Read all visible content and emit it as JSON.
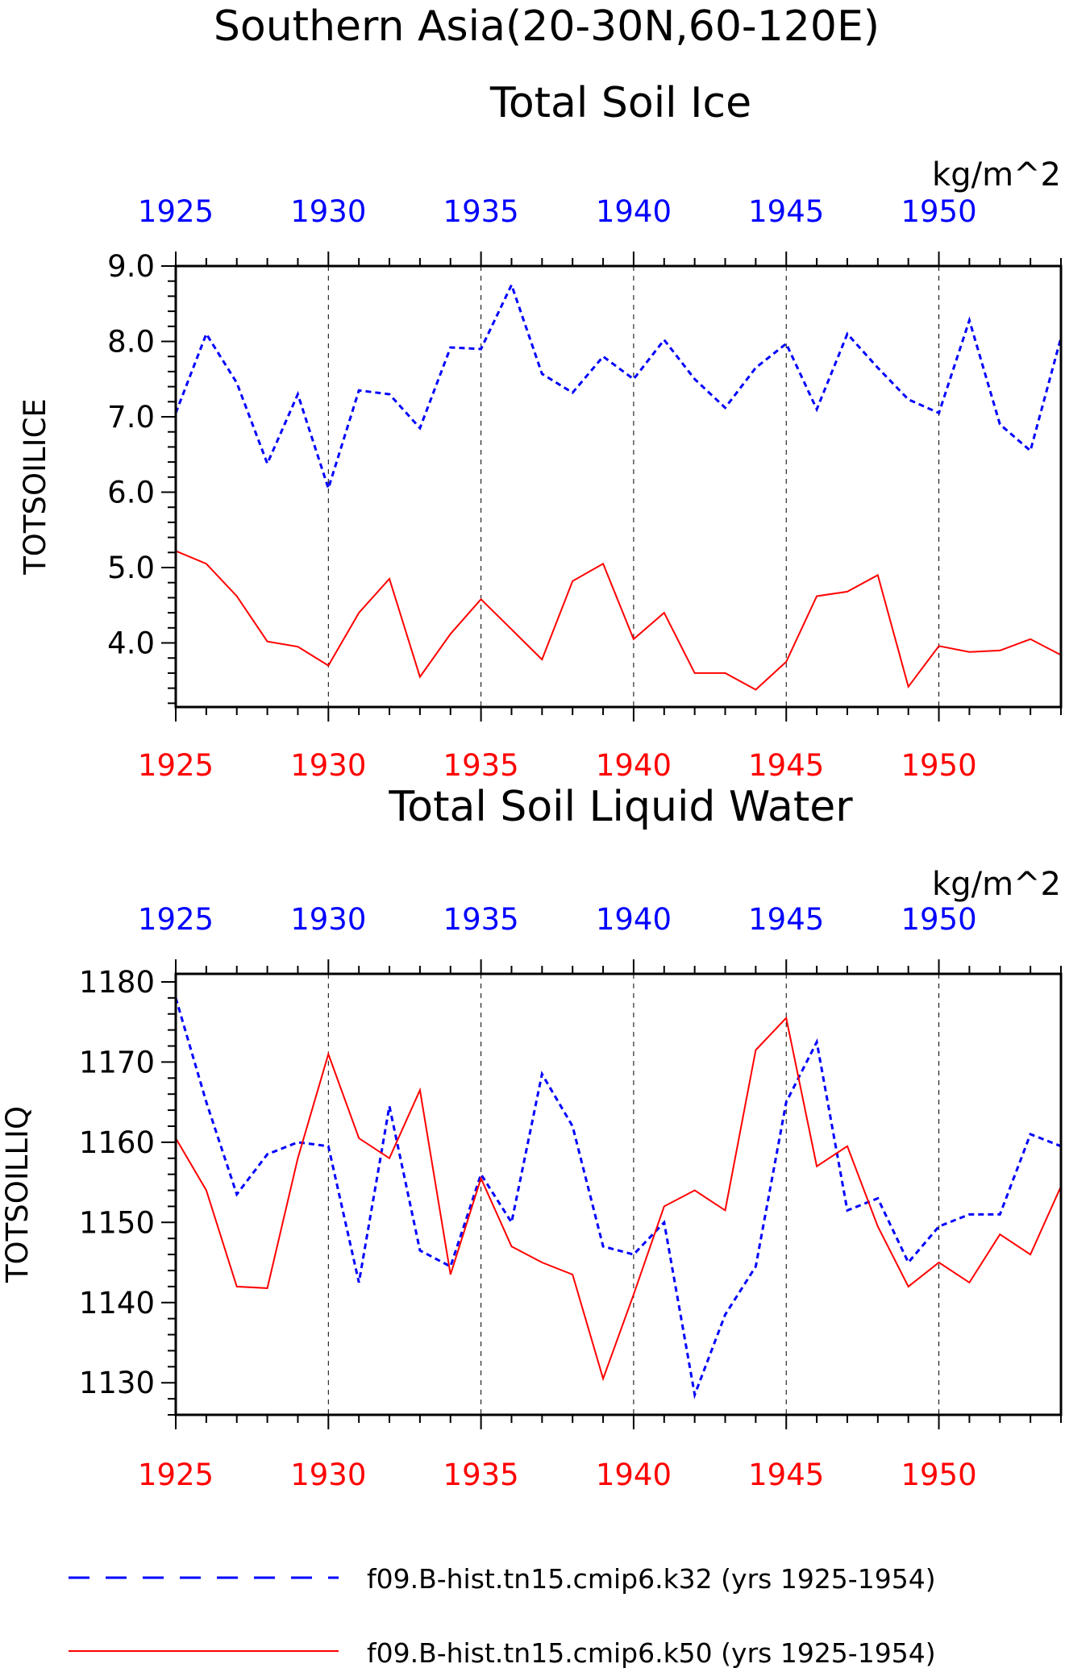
{
  "title": {
    "line1": "Southern Asia(20-30N,60-120E)"
  },
  "colors": {
    "series_k32": "#0000ff",
    "series_k50": "#ff0000",
    "axis": "#000000",
    "grid": "#000000"
  },
  "legend": {
    "placement": "bottom",
    "items": [
      {
        "label": "f09.B-hist.tn15.cmip6.k32 (yrs 1925-1954)",
        "color": "#0000ff",
        "style": "dashed"
      },
      {
        "label": "f09.B-hist.tn15.cmip6.k50 (yrs 1925-1954)",
        "color": "#ff0000",
        "style": "solid"
      }
    ]
  },
  "chart_data": [
    {
      "type": "line",
      "title": "Total Soil Ice",
      "units": "kg/m^2",
      "ylabel": "TOTSOILICE",
      "xlabel": "",
      "xlim": [
        1925,
        1954
      ],
      "ylim": [
        3.15,
        9.0
      ],
      "x_ticks": [
        1925,
        1930,
        1935,
        1940,
        1945,
        1950
      ],
      "x_tick_labels": [
        "1925",
        "1930",
        "1935",
        "1940",
        "1945",
        "1950"
      ],
      "y_ticks": [
        4.0,
        5.0,
        6.0,
        7.0,
        8.0,
        9.0
      ],
      "y_tick_labels": [
        "4.0",
        "5.0",
        "6.0",
        "7.0",
        "8.0",
        "9.0"
      ],
      "grid": "vertical dashed at labeled years",
      "x": [
        1925,
        1926,
        1927,
        1928,
        1929,
        1930,
        1931,
        1932,
        1933,
        1934,
        1935,
        1936,
        1937,
        1938,
        1939,
        1940,
        1941,
        1942,
        1943,
        1944,
        1945,
        1946,
        1947,
        1948,
        1949,
        1950,
        1951,
        1952,
        1953,
        1954
      ],
      "series": [
        {
          "name": "f09.B-hist.tn15.cmip6.k32",
          "color": "#0000ff",
          "style": "dashed",
          "values": [
            7.05,
            8.1,
            7.45,
            6.38,
            7.3,
            6.05,
            7.35,
            7.3,
            6.85,
            7.92,
            7.9,
            8.75,
            7.57,
            7.32,
            7.8,
            7.5,
            8.02,
            7.5,
            7.12,
            7.65,
            7.97,
            7.1,
            8.1,
            7.65,
            7.23,
            7.05,
            8.28,
            6.9,
            6.55,
            8.05
          ]
        },
        {
          "name": "f09.B-hist.tn15.cmip6.k50",
          "color": "#ff0000",
          "style": "solid",
          "values": [
            5.22,
            5.05,
            4.62,
            4.02,
            3.95,
            3.7,
            4.4,
            4.85,
            3.55,
            4.12,
            4.58,
            4.18,
            3.78,
            4.82,
            5.05,
            4.05,
            4.4,
            3.6,
            3.6,
            3.38,
            3.75,
            4.62,
            4.68,
            4.9,
            3.42,
            3.96,
            3.88,
            3.9,
            4.05,
            3.84
          ]
        }
      ]
    },
    {
      "type": "line",
      "title": "Total Soil Liquid Water",
      "units": "kg/m^2",
      "ylabel": "TOTSOILLIQ",
      "xlabel": "",
      "xlim": [
        1925,
        1954
      ],
      "ylim": [
        1126,
        1181
      ],
      "x_ticks": [
        1925,
        1930,
        1935,
        1940,
        1945,
        1950
      ],
      "x_tick_labels": [
        "1925",
        "1930",
        "1935",
        "1940",
        "1945",
        "1950"
      ],
      "y_ticks": [
        1130,
        1140,
        1150,
        1160,
        1170,
        1180
      ],
      "y_tick_labels": [
        "1130",
        "1140",
        "1150",
        "1160",
        "1170",
        "1180"
      ],
      "grid": "vertical dashed at labeled years",
      "x": [
        1925,
        1926,
        1927,
        1928,
        1929,
        1930,
        1931,
        1932,
        1933,
        1934,
        1935,
        1936,
        1937,
        1938,
        1939,
        1940,
        1941,
        1942,
        1943,
        1944,
        1945,
        1946,
        1947,
        1948,
        1949,
        1950,
        1951,
        1952,
        1953,
        1954
      ],
      "series": [
        {
          "name": "f09.B-hist.tn15.cmip6.k32",
          "color": "#0000ff",
          "style": "dashed",
          "values": [
            1178,
            1165,
            1153.5,
            1158.5,
            1160,
            1159.5,
            1142.5,
            1164.5,
            1146.5,
            1144.5,
            1156,
            1150,
            1168.5,
            1162,
            1147,
            1146,
            1150,
            1128.5,
            1138.5,
            1144.5,
            1165,
            1172.5,
            1151.5,
            1153,
            1145,
            1149.5,
            1151,
            1151,
            1161,
            1159.5
          ]
        },
        {
          "name": "f09.B-hist.tn15.cmip6.k50",
          "color": "#ff0000",
          "style": "solid",
          "values": [
            1160.5,
            1154,
            1142,
            1141.8,
            1158,
            1171,
            1160.5,
            1158,
            1166.5,
            1143.5,
            1155.5,
            1147,
            1145,
            1143.5,
            1130.5,
            1141,
            1152,
            1154,
            1151.5,
            1171.5,
            1175.5,
            1157,
            1159.5,
            1149.5,
            1142,
            1145,
            1142.5,
            1148.5,
            1146,
            1154.5
          ]
        }
      ]
    }
  ]
}
